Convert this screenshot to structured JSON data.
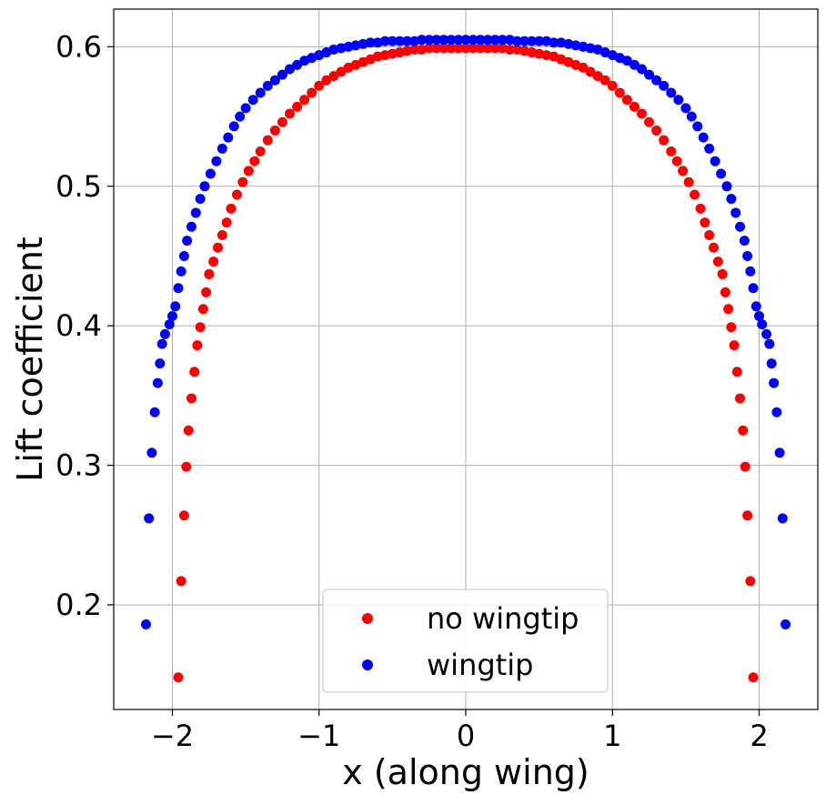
{
  "chart_data": {
    "type": "scatter",
    "title": "",
    "xlabel": "x (along wing)",
    "ylabel": "Lift coefficient",
    "xlim": [
      -2.4,
      2.4
    ],
    "ylim": [
      0.125,
      0.627
    ],
    "x_ticks": [
      -2,
      -1,
      0,
      1,
      2
    ],
    "x_tick_labels": [
      "−2",
      "−1",
      "0",
      "1",
      "2"
    ],
    "y_ticks": [
      0.2,
      0.3,
      0.4,
      0.5,
      0.6
    ],
    "y_tick_labels": [
      "0.2",
      "0.3",
      "0.4",
      "0.5",
      "0.6"
    ],
    "grid": true,
    "legend_position": "bottom-center",
    "series": [
      {
        "name": "no wingtip",
        "color": "#ff0000",
        "x": [
          -1.96,
          -1.94,
          -1.92,
          -1.905,
          -1.89,
          -1.87,
          -1.85,
          -1.83,
          -1.81,
          -1.79,
          -1.77,
          -1.75,
          -1.72,
          -1.69,
          -1.66,
          -1.63,
          -1.6,
          -1.56,
          -1.52,
          -1.48,
          -1.44,
          -1.4,
          -1.35,
          -1.3,
          -1.25,
          -1.2,
          -1.15,
          -1.1,
          -1.05,
          -1.0,
          -0.95,
          -0.9,
          -0.85,
          -0.8,
          -0.75,
          -0.7,
          -0.65,
          -0.6,
          -0.55,
          -0.5,
          -0.45,
          -0.4,
          -0.35,
          -0.3,
          -0.25,
          -0.2,
          -0.15,
          -0.1,
          -0.05,
          0.0,
          0.05,
          0.1,
          0.15,
          0.2,
          0.25,
          0.3,
          0.35,
          0.4,
          0.45,
          0.5,
          0.55,
          0.6,
          0.65,
          0.7,
          0.75,
          0.8,
          0.85,
          0.9,
          0.95,
          1.0,
          1.05,
          1.1,
          1.15,
          1.2,
          1.25,
          1.3,
          1.35,
          1.4,
          1.44,
          1.48,
          1.52,
          1.56,
          1.6,
          1.63,
          1.66,
          1.69,
          1.72,
          1.75,
          1.77,
          1.79,
          1.81,
          1.83,
          1.85,
          1.87,
          1.89,
          1.905,
          1.92,
          1.94,
          1.96
        ],
        "y": [
          0.148,
          0.217,
          0.264,
          0.299,
          0.325,
          0.348,
          0.367,
          0.386,
          0.399,
          0.412,
          0.424,
          0.437,
          0.446,
          0.456,
          0.465,
          0.474,
          0.484,
          0.494,
          0.503,
          0.511,
          0.518,
          0.525,
          0.533,
          0.54,
          0.546,
          0.552,
          0.557,
          0.562,
          0.567,
          0.572,
          0.576,
          0.579,
          0.582,
          0.585,
          0.587,
          0.589,
          0.591,
          0.593,
          0.594,
          0.595,
          0.596,
          0.597,
          0.598,
          0.598,
          0.599,
          0.599,
          0.599,
          0.599,
          0.599,
          0.599,
          0.599,
          0.599,
          0.599,
          0.599,
          0.599,
          0.598,
          0.598,
          0.597,
          0.596,
          0.595,
          0.594,
          0.593,
          0.591,
          0.589,
          0.587,
          0.585,
          0.582,
          0.579,
          0.576,
          0.572,
          0.567,
          0.562,
          0.557,
          0.552,
          0.546,
          0.54,
          0.533,
          0.525,
          0.518,
          0.511,
          0.503,
          0.494,
          0.484,
          0.474,
          0.465,
          0.456,
          0.446,
          0.437,
          0.424,
          0.412,
          0.399,
          0.386,
          0.367,
          0.348,
          0.325,
          0.299,
          0.264,
          0.217,
          0.148
        ]
      },
      {
        "name": "wingtip",
        "color": "#0000ff",
        "x": [
          -2.18,
          -2.16,
          -2.14,
          -2.12,
          -2.1,
          -2.085,
          -2.07,
          -2.05,
          -2.02,
          -2.0,
          -1.98,
          -1.96,
          -1.94,
          -1.92,
          -1.9,
          -1.87,
          -1.84,
          -1.81,
          -1.78,
          -1.74,
          -1.7,
          -1.66,
          -1.62,
          -1.58,
          -1.54,
          -1.5,
          -1.45,
          -1.4,
          -1.35,
          -1.3,
          -1.25,
          -1.2,
          -1.15,
          -1.1,
          -1.05,
          -1.0,
          -0.95,
          -0.9,
          -0.85,
          -0.8,
          -0.75,
          -0.7,
          -0.65,
          -0.6,
          -0.55,
          -0.5,
          -0.45,
          -0.4,
          -0.35,
          -0.3,
          -0.25,
          -0.2,
          -0.15,
          -0.1,
          -0.05,
          0.0,
          0.05,
          0.1,
          0.15,
          0.2,
          0.25,
          0.3,
          0.35,
          0.4,
          0.45,
          0.5,
          0.55,
          0.6,
          0.65,
          0.7,
          0.75,
          0.8,
          0.85,
          0.9,
          0.95,
          1.0,
          1.05,
          1.1,
          1.15,
          1.2,
          1.25,
          1.3,
          1.35,
          1.4,
          1.45,
          1.5,
          1.54,
          1.58,
          1.62,
          1.66,
          1.7,
          1.74,
          1.78,
          1.81,
          1.84,
          1.87,
          1.9,
          1.92,
          1.94,
          1.96,
          1.98,
          2.0,
          2.02,
          2.05,
          2.07,
          2.085,
          2.1,
          2.12,
          2.14,
          2.16,
          2.18
        ],
        "y": [
          0.186,
          0.262,
          0.309,
          0.338,
          0.359,
          0.373,
          0.387,
          0.394,
          0.401,
          0.407,
          0.414,
          0.427,
          0.439,
          0.45,
          0.461,
          0.471,
          0.481,
          0.491,
          0.5,
          0.509,
          0.518,
          0.527,
          0.535,
          0.543,
          0.55,
          0.556,
          0.562,
          0.567,
          0.572,
          0.576,
          0.58,
          0.584,
          0.587,
          0.59,
          0.592,
          0.594,
          0.596,
          0.598,
          0.599,
          0.6,
          0.601,
          0.602,
          0.603,
          0.603,
          0.604,
          0.604,
          0.604,
          0.604,
          0.604,
          0.605,
          0.605,
          0.605,
          0.605,
          0.605,
          0.605,
          0.605,
          0.605,
          0.605,
          0.605,
          0.605,
          0.605,
          0.605,
          0.604,
          0.604,
          0.604,
          0.604,
          0.604,
          0.603,
          0.603,
          0.602,
          0.601,
          0.6,
          0.599,
          0.598,
          0.596,
          0.594,
          0.592,
          0.59,
          0.587,
          0.584,
          0.58,
          0.576,
          0.572,
          0.567,
          0.562,
          0.556,
          0.55,
          0.543,
          0.535,
          0.527,
          0.518,
          0.509,
          0.5,
          0.491,
          0.481,
          0.471,
          0.461,
          0.45,
          0.439,
          0.427,
          0.414,
          0.407,
          0.401,
          0.394,
          0.387,
          0.373,
          0.359,
          0.338,
          0.309,
          0.262,
          0.186
        ]
      }
    ]
  }
}
